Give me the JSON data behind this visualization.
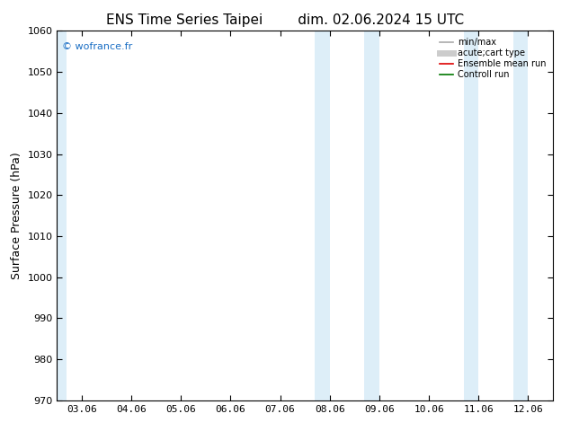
{
  "title1": "ENS Time Series Taipei",
  "title2": "dim. 02.06.2024 15 UTC",
  "ylabel": "Surface Pressure (hPa)",
  "ylim": [
    970,
    1060
  ],
  "yticks": [
    970,
    980,
    990,
    1000,
    1010,
    1020,
    1030,
    1040,
    1050,
    1060
  ],
  "xtick_labels": [
    "03.06",
    "04.06",
    "05.06",
    "06.06",
    "07.06",
    "08.06",
    "09.06",
    "10.06",
    "11.06",
    "12.06"
  ],
  "xtick_positions": [
    0,
    1,
    2,
    3,
    4,
    5,
    6,
    7,
    8,
    9
  ],
  "xlim": [
    -0.5,
    9.5
  ],
  "shaded_regions": [
    {
      "xmin": -0.5,
      "xmax": -0.3,
      "color": "#ddeef8"
    },
    {
      "xmin": 4.7,
      "xmax": 5.0,
      "color": "#ddeef8"
    },
    {
      "xmin": 5.7,
      "xmax": 6.0,
      "color": "#ddeef8"
    },
    {
      "xmin": 7.7,
      "xmax": 8.0,
      "color": "#ddeef8"
    },
    {
      "xmin": 8.7,
      "xmax": 9.0,
      "color": "#ddeef8"
    }
  ],
  "watermark": "© wofrance.fr",
  "watermark_color": "#1a6ec4",
  "bg_color": "#ffffff",
  "legend_items": [
    {
      "label": "min/max",
      "color": "#aaaaaa",
      "lw": 1.2,
      "linestyle": "-"
    },
    {
      "label": "acute;cart type",
      "color": "#cccccc",
      "lw": 5,
      "linestyle": "-"
    },
    {
      "label": "Ensemble mean run",
      "color": "#dd0000",
      "lw": 1.2,
      "linestyle": "-"
    },
    {
      "label": "Controll run",
      "color": "#007700",
      "lw": 1.2,
      "linestyle": "-"
    }
  ],
  "title_fontsize": 11,
  "ylabel_fontsize": 9,
  "tick_fontsize": 8,
  "legend_fontsize": 7
}
